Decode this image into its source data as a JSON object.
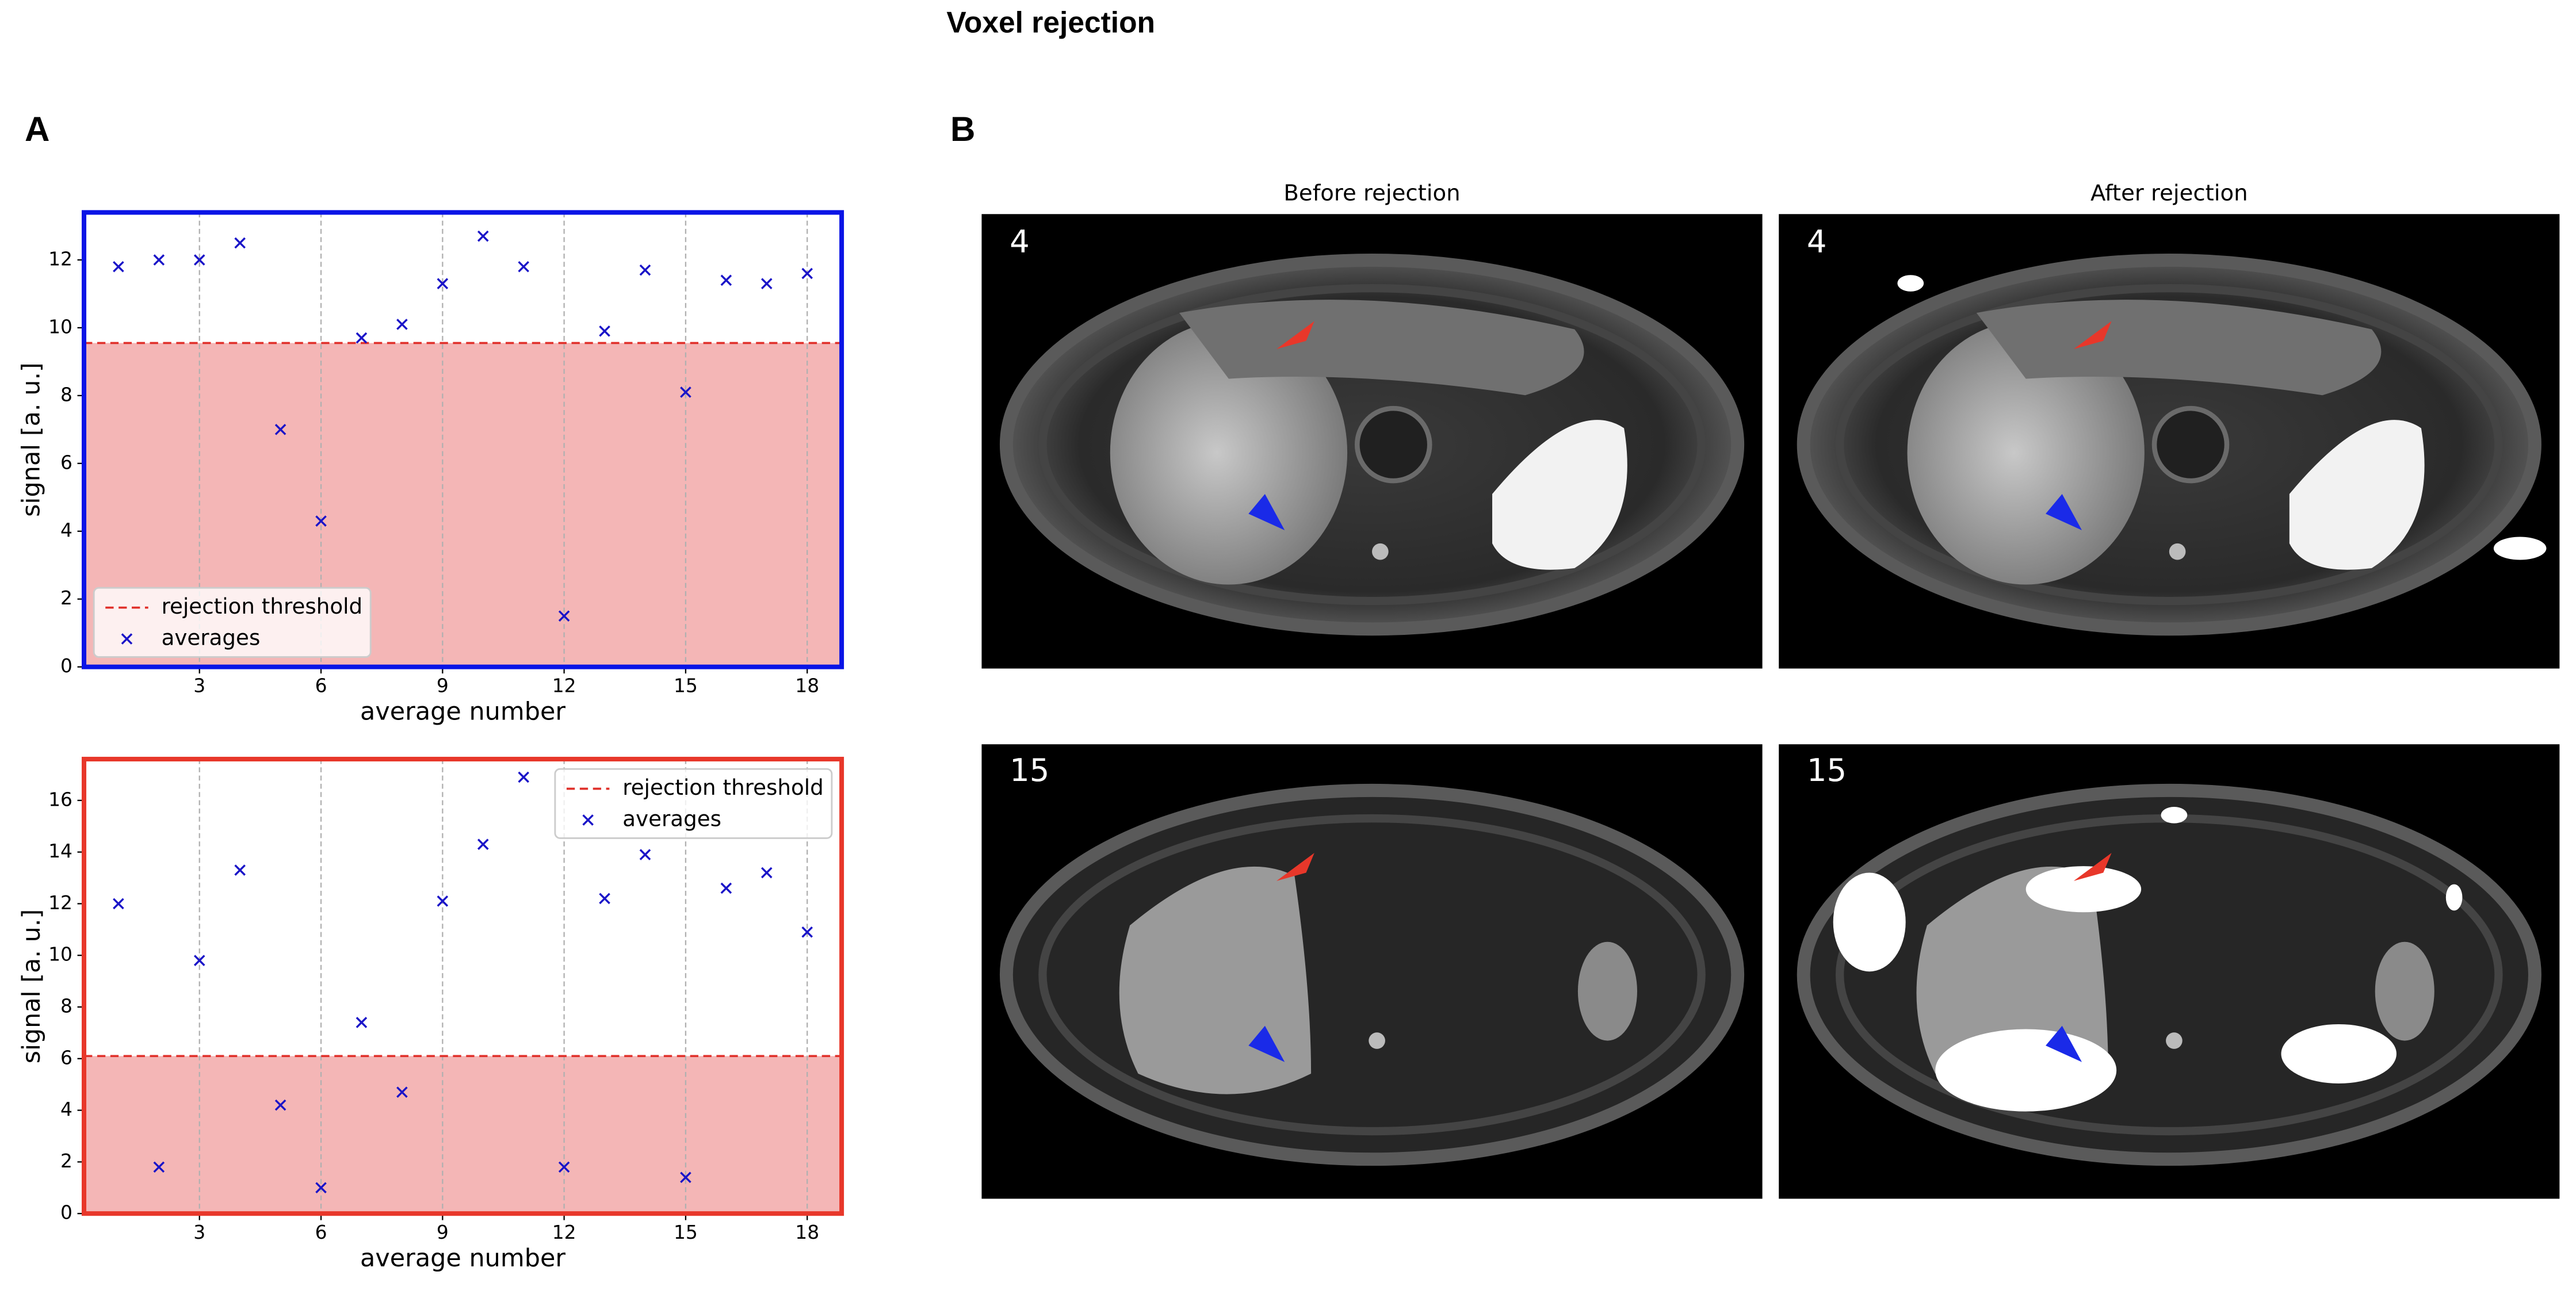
{
  "title": "Voxel rejection",
  "panels": [
    "A",
    "B"
  ],
  "images": {
    "columns": [
      "Before rejection",
      "After rejection"
    ],
    "rows": [
      "4",
      "15"
    ]
  },
  "chart_data": [
    {
      "type": "scatter",
      "frame_color": "#0a14e6",
      "x": [
        1,
        2,
        3,
        4,
        5,
        6,
        7,
        8,
        9,
        10,
        11,
        12,
        13,
        14,
        15,
        16,
        17,
        18
      ],
      "series": [
        {
          "name": "averages",
          "color": "#1a14c8",
          "marker": "x",
          "values": [
            11.8,
            12.0,
            12.0,
            12.5,
            7.0,
            4.3,
            9.7,
            10.1,
            11.3,
            12.7,
            11.8,
            1.5,
            9.9,
            11.7,
            8.1,
            11.4,
            11.3,
            11.6
          ]
        }
      ],
      "threshold": {
        "name": "rejection threshold",
        "value": 9.55,
        "color": "#e0302a",
        "fill": "#f4b6b6"
      },
      "xlabel": "average number",
      "ylabel": "signal [a. u.]",
      "xlim": [
        0.15,
        18.85
      ],
      "ylim": [
        0,
        13.4
      ],
      "xticks": [
        3,
        6,
        9,
        12,
        15,
        18
      ],
      "yticks": [
        0,
        2,
        4,
        6,
        8,
        10,
        12
      ],
      "grid": "x",
      "legend": "lower left"
    },
    {
      "type": "scatter",
      "frame_color": "#e8372a",
      "x": [
        1,
        2,
        3,
        4,
        5,
        6,
        7,
        8,
        9,
        10,
        11,
        12,
        13,
        14,
        15,
        16,
        17,
        18
      ],
      "series": [
        {
          "name": "averages",
          "color": "#1a14c8",
          "marker": "x",
          "values": [
            12.0,
            1.8,
            9.8,
            13.3,
            4.2,
            1.0,
            7.4,
            4.7,
            12.1,
            14.3,
            16.9,
            1.8,
            12.2,
            13.9,
            1.4,
            12.6,
            13.2,
            10.9
          ]
        }
      ],
      "threshold": {
        "name": "rejection threshold",
        "value": 6.1,
        "color": "#e0302a",
        "fill": "#f4b6b6"
      },
      "xlabel": "average number",
      "ylabel": "signal [a. u.]",
      "xlim": [
        0.15,
        18.85
      ],
      "ylim": [
        0,
        17.6
      ],
      "xticks": [
        3,
        6,
        9,
        12,
        15,
        18
      ],
      "yticks": [
        0,
        2,
        4,
        6,
        8,
        10,
        12,
        14,
        16
      ],
      "grid": "x",
      "legend": "upper right"
    }
  ]
}
